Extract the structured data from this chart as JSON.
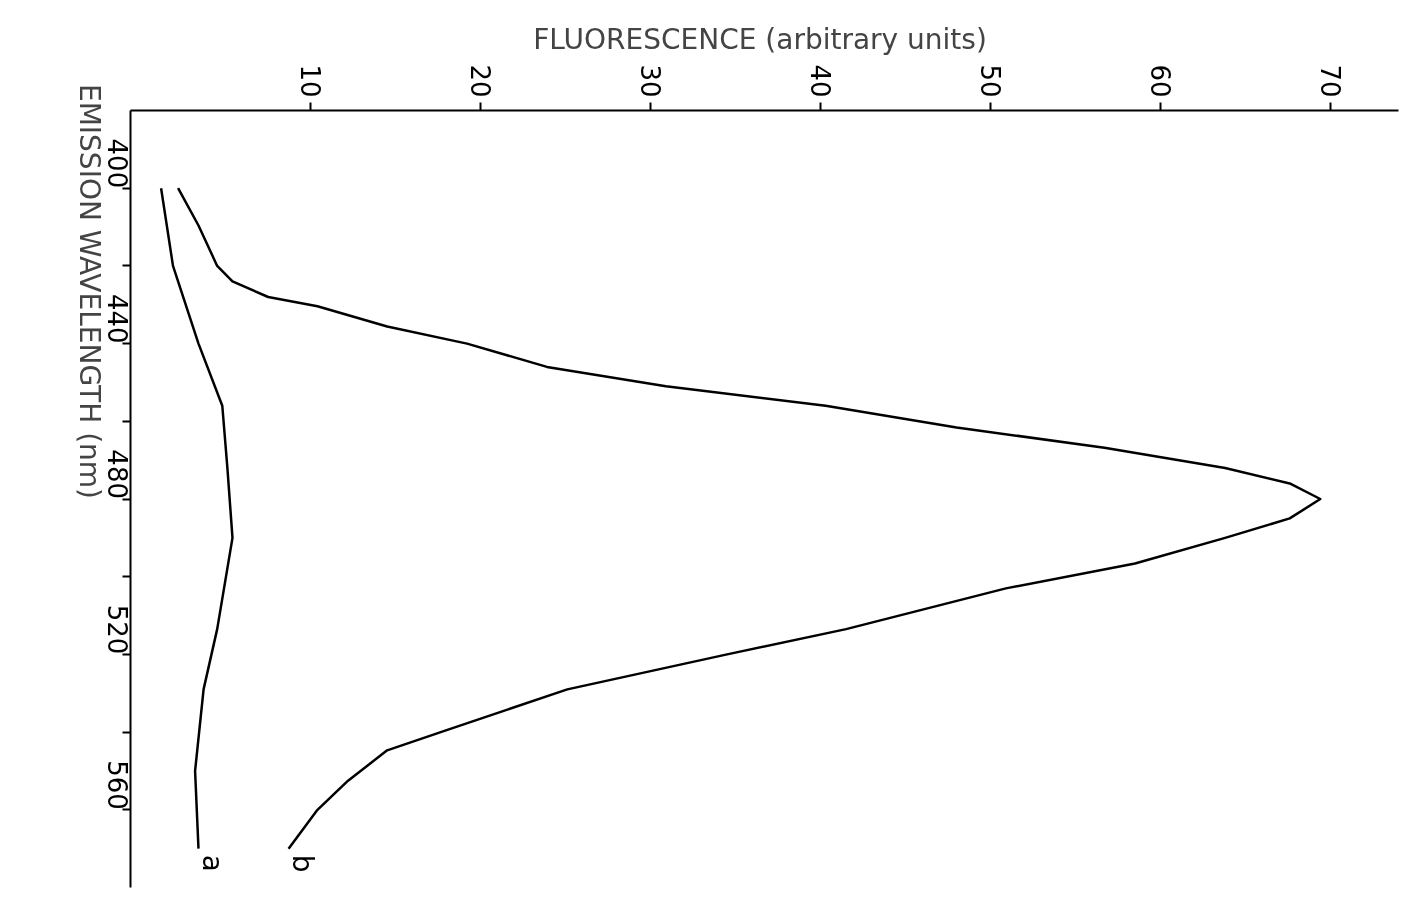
{
  "chart_data": {
    "type": "line",
    "orientation": "horizontal",
    "xlabel": "FLUORESCENCE  (arbitrary units)",
    "ylabel": "EMISSION WAVELENGTH (nm)",
    "xlim": [
      -0.6,
      74
    ],
    "xticks": [
      10,
      20,
      30,
      40,
      50,
      60,
      70
    ],
    "ylim": [
      580,
      380
    ],
    "yticks": [
      400,
      {
        "value": 420,
        "label": null
      },
      440,
      {
        "value": 460,
        "label": null
      },
      480,
      {
        "value": 500,
        "label": null
      },
      520,
      {
        "value": 540,
        "label": null
      },
      560
    ],
    "grid": false,
    "marker": "none",
    "line_style": "solid",
    "series": [
      {
        "name": "a",
        "color": "#000000",
        "x": [
          400,
          420,
          440,
          456,
          472,
          490,
          513.5,
          529,
          550,
          570
        ],
        "values": [
          1.2,
          1.9,
          3.4,
          4.8,
          5.1,
          5.4,
          4.5,
          3.7,
          3.2,
          3.4
        ]
      },
      {
        "name": "b",
        "color": "#000000",
        "x": [
          400,
          409.6,
          420,
          424,
          428,
          430.4,
          435.6,
          440,
          446,
          451,
          456,
          461.6,
          466.8,
          472,
          476,
          480,
          485,
          490,
          496.6,
          503,
          513.5,
          520,
          529,
          539.5,
          544.7,
          552.5,
          560,
          570
        ],
        "values": [
          2.2,
          3.4,
          4.5,
          5.4,
          7.5,
          10.4,
          14.5,
          19.2,
          23.9,
          30.9,
          40.3,
          48,
          56.7,
          63.8,
          67.6,
          69.4,
          67.6,
          63.8,
          58.5,
          50.9,
          41.5,
          34.5,
          25.1,
          18,
          14.5,
          12.2,
          10.4,
          8.7
        ]
      }
    ]
  }
}
